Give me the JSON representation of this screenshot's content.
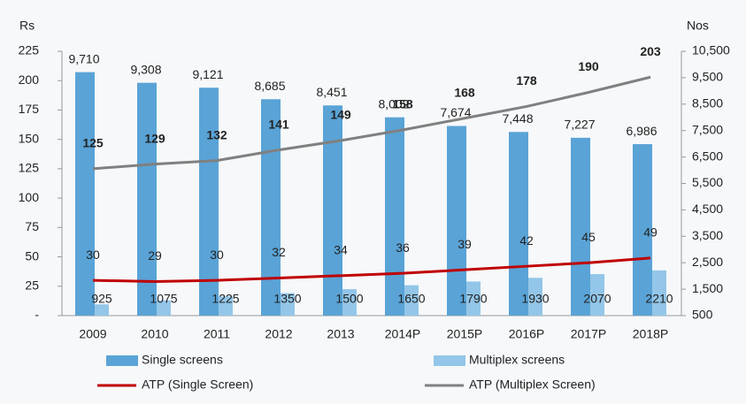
{
  "chart_data": {
    "type": "bar",
    "y_label": "Rs",
    "y2_label": "Nos",
    "categories": [
      "2009",
      "2010",
      "2011",
      "2012",
      "2013",
      "2014P",
      "2015P",
      "2016P",
      "2017P",
      "2018P"
    ],
    "ylim": [
      0,
      225
    ],
    "yticks": [
      {
        "value": 0,
        "label": "-"
      },
      25,
      50,
      75,
      100,
      125,
      150,
      175,
      200,
      225
    ],
    "y2lim": [
      500,
      10500
    ],
    "y2ticks": [
      500,
      {
        "value": 1500,
        "label": "1,500"
      },
      {
        "value": 2500,
        "label": "2,500"
      },
      {
        "value": 3500,
        "label": "3,500"
      },
      {
        "value": 4500,
        "label": "4,500"
      },
      {
        "value": 5500,
        "label": "5,500"
      },
      {
        "value": 6500,
        "label": "6,500"
      },
      {
        "value": 7500,
        "label": "7,500"
      },
      {
        "value": 8500,
        "label": "8,500"
      },
      {
        "value": 9500,
        "label": "9,500"
      },
      {
        "value": 10500,
        "label": "10,500"
      }
    ],
    "series": [
      {
        "name": "Single screens",
        "type": "bar",
        "axis": "y2",
        "color": "#5aa3d6",
        "values": [
          9710,
          9308,
          9121,
          8685,
          8451,
          8002,
          7674,
          7448,
          7227,
          6986
        ],
        "value_labels": [
          "9,710",
          "9,308",
          "9,121",
          "8,685",
          "8,451",
          "8,002",
          "7,674",
          "7,448",
          "7,227",
          "6,986"
        ]
      },
      {
        "name": "Multiplex screens",
        "type": "bar",
        "axis": "y2",
        "color": "#93c6e8",
        "values": [
          925,
          1075,
          1225,
          1350,
          1500,
          1650,
          1790,
          1930,
          2070,
          2210
        ]
      },
      {
        "name": "ATP (Single Screen)",
        "type": "line",
        "color": "#c00000",
        "values": [
          30,
          29,
          30,
          32,
          34,
          36,
          39,
          42,
          45,
          49
        ]
      },
      {
        "name": "ATP (Multiplex Screen)",
        "type": "line",
        "color": "#808080",
        "values": [
          125,
          129,
          132,
          141,
          149,
          158,
          168,
          178,
          190,
          203
        ]
      }
    ]
  }
}
